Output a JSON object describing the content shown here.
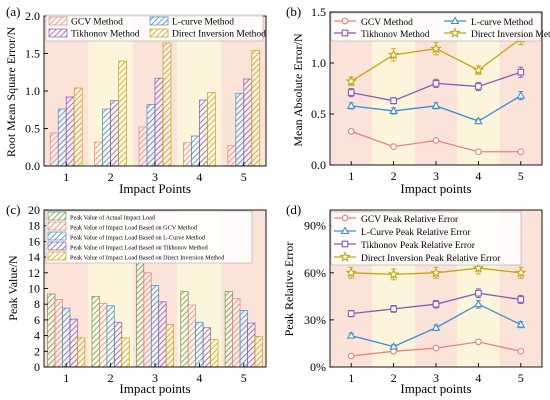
{
  "figure": {
    "palette": {
      "gcv": "#e8837b",
      "lcurve": "#3b8fce",
      "tikhonov": "#8b58b3",
      "direct": "#c7a512",
      "actual": "#6b9a4e",
      "stripe_a": "#fbe3da",
      "stripe_b": "#fdf4dc"
    }
  },
  "chart_data": [
    {
      "id": "a",
      "panel_label": "(a)",
      "type": "bar",
      "xlabel": "Impact Points",
      "ylabel": "Root Mean Square Error/N",
      "categories": [
        "1",
        "2",
        "3",
        "4",
        "5"
      ],
      "ylim": [
        0,
        2.0
      ],
      "yticks": [
        "0.0",
        "0.5",
        "1.0",
        "1.5",
        "2.0"
      ],
      "grid": false,
      "legend_position": "top",
      "series": [
        {
          "name": "GCV Method",
          "color_key": "gcv",
          "values": [
            0.44,
            0.32,
            0.52,
            0.31,
            0.27
          ]
        },
        {
          "name": "L-curve Method",
          "color_key": "lcurve",
          "values": [
            0.76,
            0.76,
            0.82,
            0.4,
            0.97
          ]
        },
        {
          "name": "Tikhonov Method",
          "color_key": "tikhonov",
          "values": [
            0.92,
            0.87,
            1.17,
            0.88,
            1.16
          ]
        },
        {
          "name": "Direct Inversion Method",
          "color_key": "direct",
          "values": [
            1.04,
            1.4,
            1.64,
            0.98,
            1.54
          ]
        }
      ]
    },
    {
      "id": "b",
      "panel_label": "(b)",
      "type": "line",
      "xlabel": "Impact points",
      "ylabel": "Mean Absolute Error/N",
      "x": [
        1,
        2,
        3,
        4,
        5
      ],
      "xticks": [
        "1",
        "2",
        "3",
        "4",
        "5"
      ],
      "ylim": [
        0.0,
        1.5
      ],
      "yticks": [
        "0.0",
        "0.5",
        "1.0",
        "1.5"
      ],
      "grid": false,
      "legend_position": "top",
      "series": [
        {
          "name": "GCV Method",
          "color_key": "gcv",
          "marker": "circle",
          "values": [
            0.33,
            0.18,
            0.24,
            0.13,
            0.13
          ],
          "errors": [
            0.02,
            0.01,
            0.01,
            0.01,
            0.01
          ]
        },
        {
          "name": "L-curve Method",
          "color_key": "lcurve",
          "marker": "triangle",
          "values": [
            0.58,
            0.53,
            0.58,
            0.43,
            0.68
          ],
          "errors": [
            0.03,
            0.03,
            0.03,
            0.02,
            0.04
          ]
        },
        {
          "name": "Tikhonov Method",
          "color_key": "tikhonov",
          "marker": "square",
          "values": [
            0.71,
            0.63,
            0.8,
            0.77,
            0.91
          ],
          "errors": [
            0.04,
            0.03,
            0.04,
            0.04,
            0.05
          ]
        },
        {
          "name": "Direct Inversion Method",
          "color_key": "direct",
          "marker": "star",
          "values": [
            0.82,
            1.08,
            1.14,
            0.93,
            1.24
          ],
          "errors": [
            0.04,
            0.06,
            0.06,
            0.04,
            0.06
          ]
        }
      ]
    },
    {
      "id": "c",
      "panel_label": "(c)",
      "type": "bar",
      "xlabel": "Impact points",
      "ylabel": "Peak Value/N",
      "categories": [
        "1",
        "2",
        "3",
        "4",
        "5"
      ],
      "ylim": [
        0,
        20
      ],
      "yticks": [
        "0",
        "2",
        "4",
        "6",
        "8",
        "10",
        "12",
        "14",
        "16",
        "18",
        "20"
      ],
      "grid": false,
      "legend_position": "top",
      "series": [
        {
          "name": "Peak Value of Actual Impact Load",
          "color_key": "actual",
          "values": [
            9.3,
            9.0,
            13.9,
            9.6,
            9.6
          ]
        },
        {
          "name": "Peak Value of Impact Load Based on GCV Method",
          "color_key": "gcv",
          "values": [
            8.6,
            8.1,
            12.0,
            7.9,
            8.7
          ]
        },
        {
          "name": "Peak Value of Impact Load Based on L-Curve Method",
          "color_key": "lcurve",
          "values": [
            7.5,
            7.8,
            10.4,
            5.7,
            7.2
          ]
        },
        {
          "name": "Peak Value of Impact Load Based on Tikhonov Method",
          "color_key": "tikhonov",
          "values": [
            6.1,
            5.7,
            8.3,
            5.0,
            5.6
          ]
        },
        {
          "name": "Peak Value of Impact Load Based on Direct Inversion Method",
          "color_key": "direct",
          "values": [
            3.7,
            3.7,
            5.4,
            3.5,
            3.9
          ]
        }
      ]
    },
    {
      "id": "d",
      "panel_label": "(d)",
      "type": "line",
      "xlabel": "Impact points",
      "ylabel": "Peak Relative Error",
      "x": [
        1,
        2,
        3,
        4,
        5
      ],
      "xticks": [
        "1",
        "2",
        "3",
        "4",
        "5"
      ],
      "ylim": [
        0,
        100
      ],
      "yticks": [
        "0%",
        "30%",
        "60%",
        "90%"
      ],
      "grid": false,
      "legend_position": "top",
      "series": [
        {
          "name": "GCV Peak Relative Error",
          "color_key": "gcv",
          "marker": "circle",
          "values": [
            7,
            10,
            12,
            16,
            10
          ],
          "errors": [
            0.6,
            0.8,
            1.0,
            1.2,
            0.8
          ]
        },
        {
          "name": "L-Curve Peak Relative Error",
          "color_key": "lcurve",
          "marker": "triangle",
          "values": [
            20,
            13,
            25,
            40,
            27
          ],
          "errors": [
            1.5,
            1.2,
            1.8,
            2.5,
            2.0
          ]
        },
        {
          "name": "Tikhonov Peak Relative Error",
          "color_key": "tikhonov",
          "marker": "square",
          "values": [
            34,
            37,
            40,
            47,
            43
          ],
          "errors": [
            2.0,
            2.2,
            2.4,
            2.8,
            2.6
          ]
        },
        {
          "name": "Direct Inversion Peak Relative Error",
          "color_key": "direct",
          "marker": "star",
          "values": [
            60,
            59,
            60,
            63,
            60
          ],
          "errors": [
            3.5,
            3.5,
            3.5,
            3.8,
            3.5
          ]
        }
      ]
    }
  ]
}
